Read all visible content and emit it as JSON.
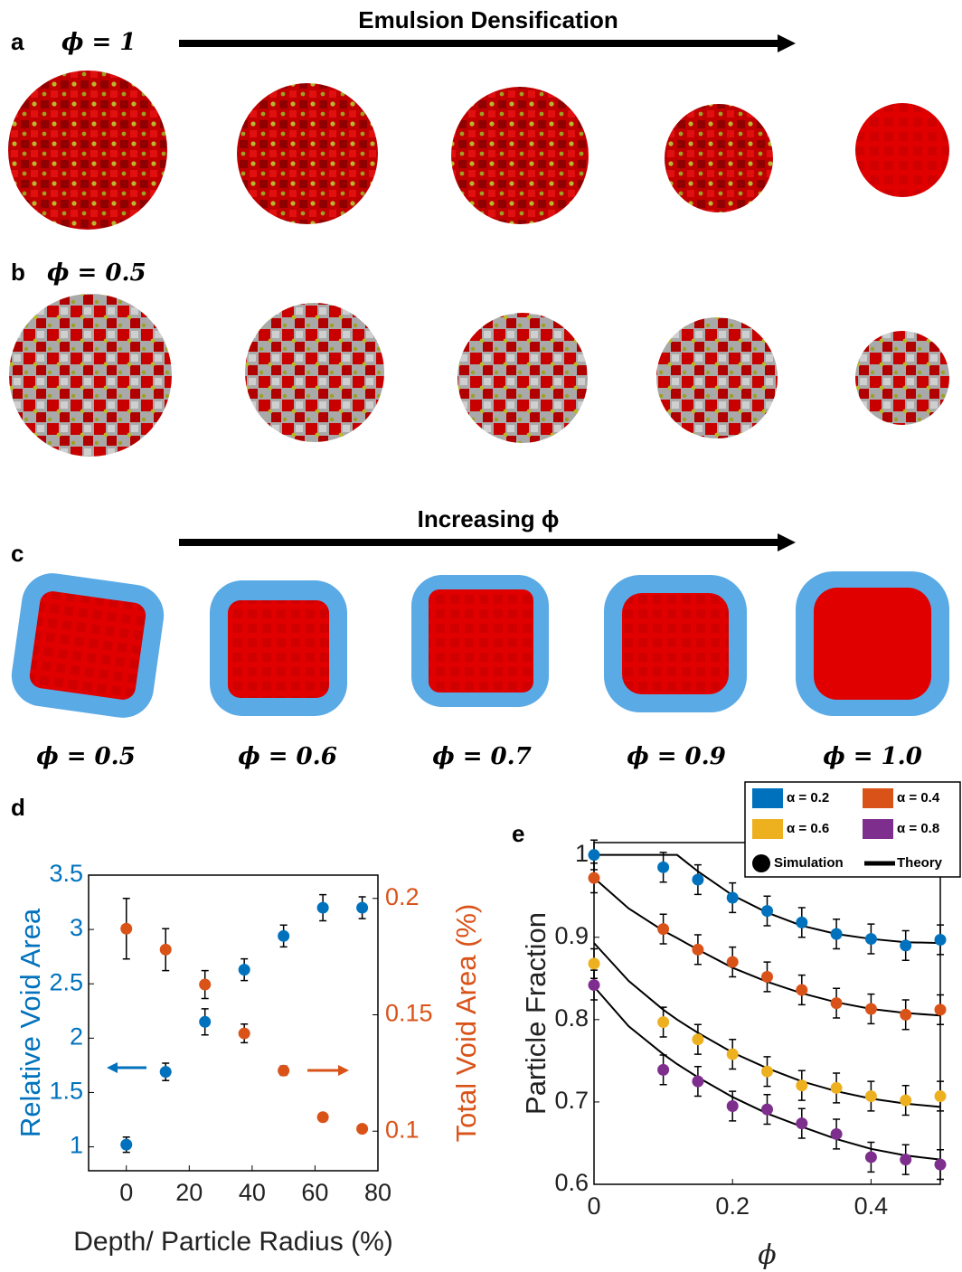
{
  "figure": {
    "top_arrow_label": "Emulsion Densification",
    "panel_a": "a",
    "phi_a": "ϕ = 1",
    "panel_b": "b",
    "phi_b": "ϕ = 0.5",
    "middle_arrow_label": "Increasing ϕ",
    "panel_c": "c",
    "phi_c": [
      "ϕ = 0.5",
      "ϕ = 0.6",
      "ϕ = 0.7",
      "ϕ = 0.9",
      "ϕ = 1.0"
    ],
    "panel_d": "d",
    "panel_e": "e"
  },
  "chart_data": [
    {
      "type": "scatter",
      "x": [
        0,
        12.5,
        25,
        37.5,
        50,
        62.5,
        75
      ],
      "xlim": [
        -12,
        80
      ],
      "xticks": [
        0,
        20,
        40,
        60,
        80
      ],
      "xlabel": "Depth/ Particle Radius (%)",
      "ylabel": "Relative Void Area",
      "y2label": "Total Void Area (%)",
      "ylim": [
        0.78,
        3.5
      ],
      "yticks": [
        1,
        1.5,
        2,
        2.5,
        3,
        3.5
      ],
      "y2lim": [
        0.083,
        0.21
      ],
      "y2ticks": [
        0.1,
        0.15,
        0.2
      ],
      "series": [
        {
          "color": "#0072bd",
          "values": [
            1.02,
            1.69,
            2.15,
            2.63,
            2.94,
            3.2,
            3.2
          ],
          "errors": [
            0.07,
            0.08,
            0.12,
            0.1,
            0.1,
            0.12,
            0.1
          ]
        },
        {
          "color": "#d95319",
          "axis": "y2",
          "values": [
            0.187,
            0.178,
            0.163,
            0.142,
            0.126,
            0.106,
            0.101
          ],
          "errors": [
            0.013,
            0.009,
            0.006,
            0.004,
            0.002,
            0,
            0
          ]
        }
      ]
    },
    {
      "type": "scatter",
      "x": [
        0,
        0.1,
        0.15,
        0.2,
        0.25,
        0.3,
        0.35,
        0.4,
        0.45,
        0.5
      ],
      "xlim": [
        0,
        0.5
      ],
      "xticks": [
        0,
        0.2,
        0.4
      ],
      "xlabel": "ϕ",
      "ylabel": "Particle Fraction",
      "ylim": [
        0.6,
        1.015
      ],
      "yticks": [
        0.6,
        0.7,
        0.8,
        0.9,
        1
      ],
      "legend": "top-right",
      "series": [
        {
          "name": "α = 0.2",
          "color": "#0072bd",
          "values": [
            1.0,
            0.985,
            0.97,
            0.948,
            0.932,
            0.918,
            0.904,
            0.898,
            0.89,
            0.897
          ],
          "errors": [
            0.018,
            0.018,
            0.018,
            0.018,
            0.018,
            0.018,
            0.018,
            0.018,
            0.018,
            0.018
          ]
        },
        {
          "name": "α = 0.4",
          "color": "#d95319",
          "values": [
            0.972,
            0.91,
            0.885,
            0.87,
            0.852,
            0.836,
            0.82,
            0.813,
            0.806,
            0.812
          ],
          "errors": [
            0.018,
            0.018,
            0.018,
            0.018,
            0.018,
            0.018,
            0.018,
            0.018,
            0.018,
            0.018
          ]
        },
        {
          "name": "α = 0.6",
          "color": "#edb120",
          "values": [
            0.868,
            0.797,
            0.776,
            0.758,
            0.737,
            0.72,
            0.717,
            0.707,
            0.702,
            0.707
          ],
          "errors": [
            0.018,
            0.018,
            0.018,
            0.018,
            0.018,
            0.018,
            0.018,
            0.018,
            0.018,
            0.018
          ]
        },
        {
          "name": "α = 0.8",
          "color": "#7e2f8e",
          "values": [
            0.842,
            0.739,
            0.725,
            0.695,
            0.691,
            0.674,
            0.661,
            0.633,
            0.63,
            0.624
          ],
          "errors": [
            0.018,
            0.018,
            0.018,
            0.018,
            0.018,
            0.018,
            0.018,
            0.018,
            0.018,
            0.018
          ]
        }
      ],
      "simulation_label": "Simulation",
      "theory": {
        "name": "Theory",
        "color": "#000000",
        "x": [
          0,
          0.05,
          0.1,
          0.12,
          0.15,
          0.2,
          0.25,
          0.3,
          0.35,
          0.4,
          0.45,
          0.5
        ],
        "curves": [
          {
            "values": [
              1,
              1,
              1,
              1,
              0.98,
              0.951,
              0.93,
              0.914,
              0.904,
              0.898,
              0.894,
              0.893
            ]
          },
          {
            "values": [
              0.972,
              0.935,
              0.908,
              0.899,
              0.885,
              0.863,
              0.846,
              0.832,
              0.821,
              0.813,
              0.808,
              0.805
            ]
          },
          {
            "values": [
              0.893,
              0.847,
              0.812,
              0.8,
              0.784,
              0.76,
              0.741,
              0.725,
              0.713,
              0.704,
              0.698,
              0.694
            ]
          },
          {
            "values": [
              0.84,
              0.792,
              0.758,
              0.746,
              0.73,
              0.706,
              0.686,
              0.67,
              0.655,
              0.643,
              0.635,
              0.63
            ]
          }
        ]
      }
    }
  ]
}
